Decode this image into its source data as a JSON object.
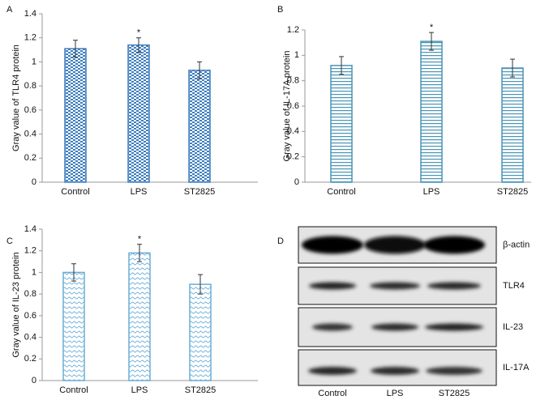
{
  "chart_data": [
    {
      "type": "bar",
      "panel_label": "A",
      "y_label": "Gray value of TLR4 protein",
      "categories": [
        "Control",
        "LPS",
        "ST2825"
      ],
      "values": [
        1.11,
        1.14,
        0.93
      ],
      "errors": [
        0.07,
        0.06,
        0.07
      ],
      "significance": [
        null,
        "*",
        null
      ],
      "color": "#3f7fbf",
      "pattern": "checker",
      "ylim": [
        0,
        1.4
      ],
      "yticks": [
        0,
        0.2,
        0.4,
        0.6,
        0.8,
        1,
        1.2,
        1.4
      ]
    },
    {
      "type": "bar",
      "panel_label": "B",
      "y_label": "Gray value of IL-17A protein",
      "categories": [
        "Control",
        "LPS",
        "ST2825"
      ],
      "values": [
        0.92,
        1.11,
        0.9
      ],
      "errors": [
        0.07,
        0.07,
        0.07
      ],
      "significance": [
        null,
        "*",
        null
      ],
      "color": "#4a94b5",
      "pattern": "hlines",
      "ylim": [
        0,
        1.2
      ],
      "yticks": [
        0,
        0.2,
        0.4,
        0.6,
        0.8,
        1,
        1.2
      ]
    },
    {
      "type": "bar",
      "panel_label": "C",
      "y_label": "Gray value of IL-23 protein",
      "categories": [
        "Control",
        "LPS",
        "ST2825"
      ],
      "values": [
        1.0,
        1.18,
        0.89
      ],
      "errors": [
        0.08,
        0.08,
        0.09
      ],
      "significance": [
        null,
        "*",
        null
      ],
      "color": "#6aaed6",
      "pattern": "waves",
      "ylim": [
        0,
        1.4
      ],
      "yticks": [
        0,
        0.2,
        0.4,
        0.6,
        0.8,
        1,
        1.2,
        1.4
      ]
    }
  ],
  "blot": {
    "panel_label": "D",
    "rows": [
      "β-actin",
      "TLR4",
      "IL-23",
      "IL-17A"
    ],
    "lanes": [
      "Control",
      "LPS",
      "ST2825"
    ]
  }
}
